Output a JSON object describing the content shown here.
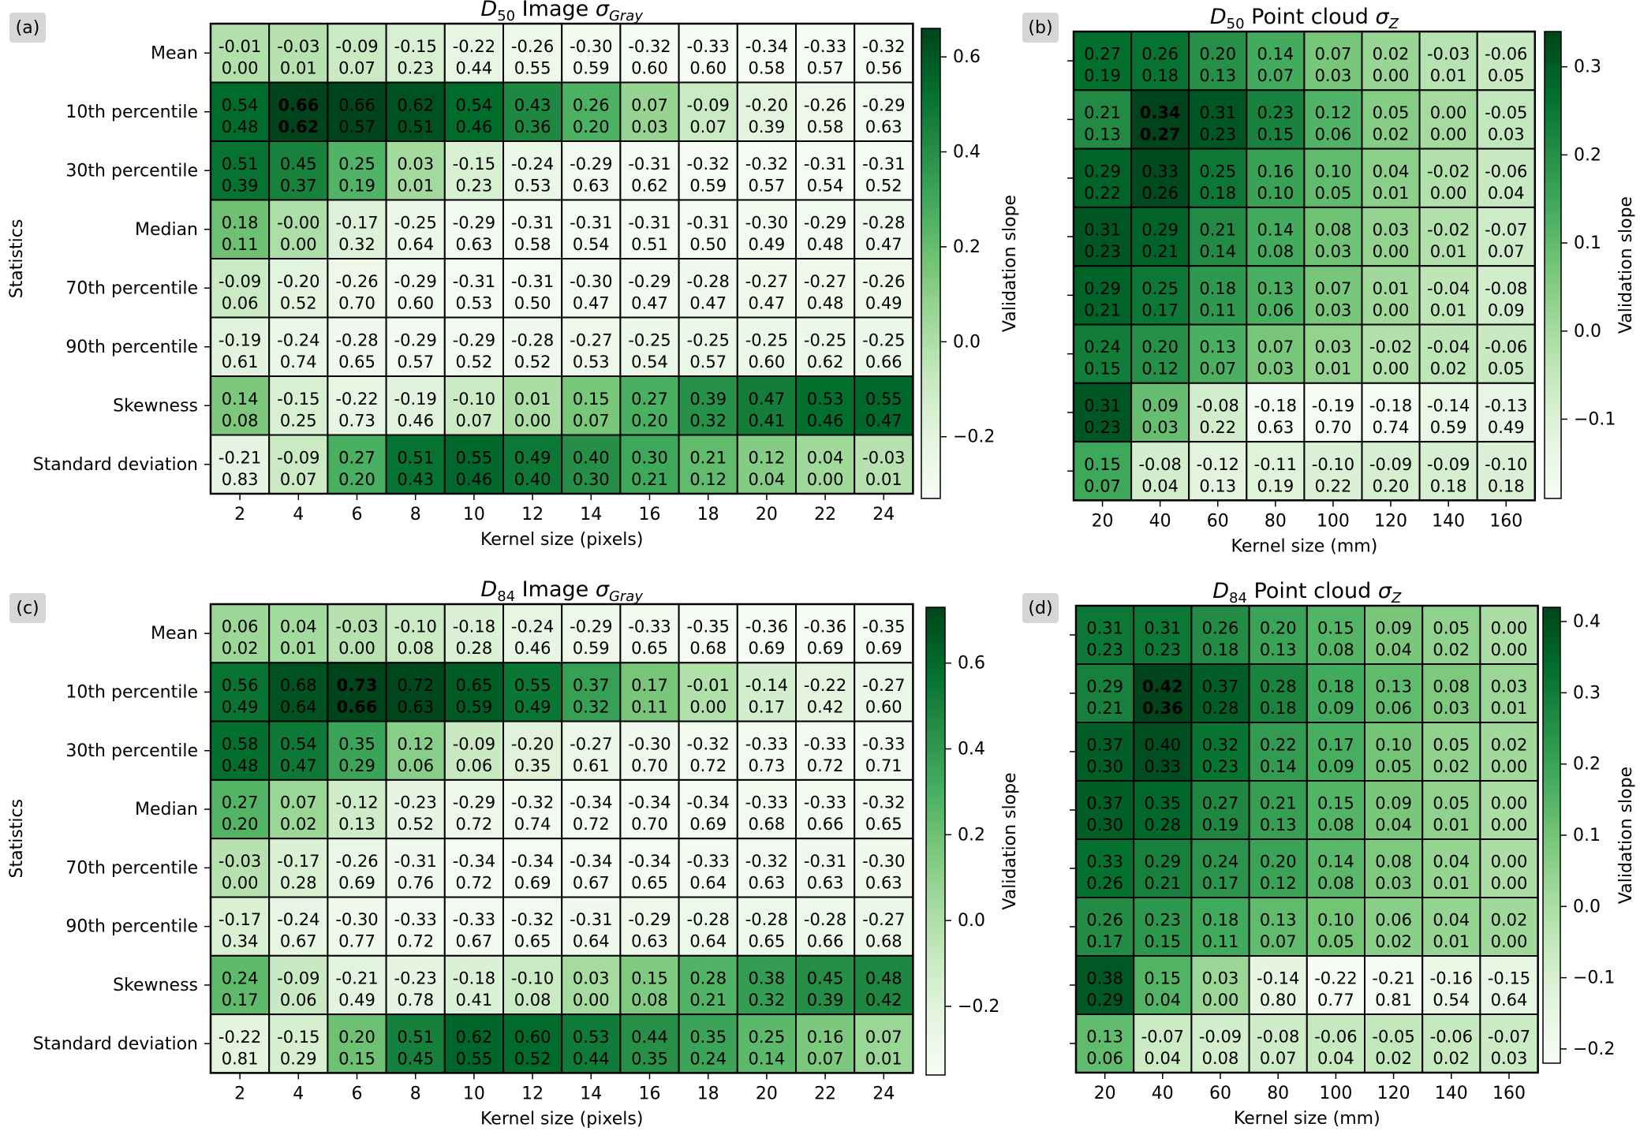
{
  "panels": [
    {
      "tag": "(a)",
      "title_var": "D",
      "title_sub": "50",
      "title_mid": " Image ",
      "title_sym": "σ",
      "title_sym_sub": "Gray",
      "xlabel": "Kernel size (pixels)",
      "ylabel": "Statistics",
      "colorbar_label": "Validation slope",
      "x": [
        2,
        4,
        6,
        8,
        10,
        12,
        14,
        16,
        18,
        20,
        22,
        24
      ],
      "rows": [
        "Mean",
        "10th percentile",
        "30th percentile",
        "Median",
        "70th percentile",
        "90th percentile",
        "Skewness",
        "Standard deviation"
      ],
      "slopes": [
        [
          -0.01,
          -0.03,
          -0.09,
          -0.15,
          -0.22,
          -0.26,
          -0.3,
          -0.32,
          -0.33,
          -0.34,
          -0.33,
          -0.32
        ],
        [
          0.54,
          0.66,
          0.66,
          0.62,
          0.54,
          0.43,
          0.26,
          0.07,
          -0.09,
          -0.2,
          -0.26,
          -0.29
        ],
        [
          0.51,
          0.45,
          0.25,
          0.03,
          -0.15,
          -0.24,
          -0.29,
          -0.31,
          -0.32,
          -0.32,
          -0.31,
          -0.31
        ],
        [
          0.18,
          -0.0,
          -0.17,
          -0.25,
          -0.29,
          -0.31,
          -0.31,
          -0.31,
          -0.31,
          -0.3,
          -0.29,
          -0.28
        ],
        [
          -0.09,
          -0.2,
          -0.26,
          -0.29,
          -0.31,
          -0.31,
          -0.3,
          -0.29,
          -0.28,
          -0.27,
          -0.27,
          -0.26
        ],
        [
          -0.19,
          -0.24,
          -0.28,
          -0.29,
          -0.29,
          -0.28,
          -0.27,
          -0.25,
          -0.25,
          -0.25,
          -0.25,
          -0.25
        ],
        [
          0.14,
          -0.15,
          -0.22,
          -0.19,
          -0.1,
          0.01,
          0.15,
          0.27,
          0.39,
          0.47,
          0.53,
          0.55
        ],
        [
          -0.21,
          -0.09,
          0.27,
          0.51,
          0.55,
          0.49,
          0.4,
          0.3,
          0.21,
          0.12,
          0.04,
          -0.03
        ]
      ],
      "second": [
        [
          0.0,
          0.01,
          0.07,
          0.23,
          0.44,
          0.55,
          0.59,
          0.6,
          0.6,
          0.58,
          0.57,
          0.56
        ],
        [
          0.48,
          0.62,
          0.57,
          0.51,
          0.46,
          0.36,
          0.2,
          0.03,
          0.07,
          0.39,
          0.58,
          0.63
        ],
        [
          0.39,
          0.37,
          0.19,
          0.01,
          0.23,
          0.53,
          0.63,
          0.62,
          0.59,
          0.57,
          0.54,
          0.52
        ],
        [
          0.11,
          0.0,
          0.32,
          0.64,
          0.63,
          0.58,
          0.54,
          0.51,
          0.5,
          0.49,
          0.48,
          0.47
        ],
        [
          0.06,
          0.52,
          0.7,
          0.6,
          0.53,
          0.5,
          0.47,
          0.47,
          0.47,
          0.47,
          0.48,
          0.49
        ],
        [
          0.61,
          0.74,
          0.65,
          0.57,
          0.52,
          0.52,
          0.53,
          0.54,
          0.57,
          0.6,
          0.62,
          0.66
        ],
        [
          0.08,
          0.25,
          0.73,
          0.46,
          0.07,
          0.0,
          0.07,
          0.2,
          0.32,
          0.41,
          0.46,
          0.47
        ],
        [
          0.83,
          0.07,
          0.2,
          0.43,
          0.46,
          0.4,
          0.3,
          0.21,
          0.12,
          0.04,
          0.0,
          0.01
        ]
      ],
      "bold_cell": [
        1,
        1
      ],
      "vmin": -0.33,
      "vmax": 0.66,
      "cb_ticks": [
        -0.2,
        0.0,
        0.2,
        0.4,
        0.6
      ],
      "cb_tick_labels": [
        "−0.2",
        "0.0",
        "0.2",
        "0.4",
        "0.6"
      ]
    },
    {
      "tag": "(b)",
      "title_var": "D",
      "title_sub": "50",
      "title_mid": " Point cloud ",
      "title_sym": "σ",
      "title_sym_sub": "Z",
      "xlabel": "Kernel size (mm)",
      "ylabel": "",
      "colorbar_label": "Validation slope",
      "x": [
        20,
        40,
        60,
        80,
        100,
        120,
        140,
        160
      ],
      "rows": [
        "",
        "",
        "",
        "",
        "",
        "",
        "",
        ""
      ],
      "slopes": [
        [
          0.27,
          0.26,
          0.2,
          0.14,
          0.07,
          0.02,
          -0.03,
          -0.06
        ],
        [
          0.21,
          0.34,
          0.31,
          0.23,
          0.12,
          0.05,
          0.0,
          -0.05
        ],
        [
          0.29,
          0.33,
          0.25,
          0.16,
          0.1,
          0.04,
          -0.02,
          -0.06
        ],
        [
          0.31,
          0.29,
          0.21,
          0.14,
          0.08,
          0.03,
          -0.02,
          -0.07
        ],
        [
          0.29,
          0.25,
          0.18,
          0.13,
          0.07,
          0.01,
          -0.04,
          -0.08
        ],
        [
          0.24,
          0.2,
          0.13,
          0.07,
          0.03,
          -0.02,
          -0.04,
          -0.06
        ],
        [
          0.31,
          0.09,
          -0.08,
          -0.18,
          -0.19,
          -0.18,
          -0.14,
          -0.13
        ],
        [
          0.15,
          -0.08,
          -0.12,
          -0.11,
          -0.1,
          -0.09,
          -0.09,
          -0.1
        ]
      ],
      "second": [
        [
          0.19,
          0.18,
          0.13,
          0.07,
          0.03,
          0.0,
          0.01,
          0.05
        ],
        [
          0.13,
          0.27,
          0.23,
          0.15,
          0.06,
          0.02,
          0.0,
          0.03
        ],
        [
          0.22,
          0.26,
          0.18,
          0.1,
          0.05,
          0.01,
          0.0,
          0.04
        ],
        [
          0.23,
          0.21,
          0.14,
          0.08,
          0.03,
          0.0,
          0.01,
          0.07
        ],
        [
          0.21,
          0.17,
          0.11,
          0.06,
          0.03,
          0.0,
          0.01,
          0.09
        ],
        [
          0.15,
          0.12,
          0.07,
          0.03,
          0.01,
          0.0,
          0.02,
          0.05
        ],
        [
          0.23,
          0.03,
          0.22,
          0.63,
          0.7,
          0.74,
          0.59,
          0.49
        ],
        [
          0.07,
          0.04,
          0.13,
          0.19,
          0.22,
          0.2,
          0.18,
          0.18
        ]
      ],
      "bold_cell": [
        1,
        1
      ],
      "vmin": -0.19,
      "vmax": 0.34,
      "cb_ticks": [
        -0.1,
        0.0,
        0.1,
        0.2,
        0.3
      ],
      "cb_tick_labels": [
        "−0.1",
        "0.0",
        "0.1",
        "0.2",
        "0.3"
      ]
    },
    {
      "tag": "(c)",
      "title_var": "D",
      "title_sub": "84",
      "title_mid": " Image ",
      "title_sym": "σ",
      "title_sym_sub": "Gray",
      "xlabel": "Kernel size (pixels)",
      "ylabel": "Statistics",
      "colorbar_label": "Validation slope",
      "x": [
        2,
        4,
        6,
        8,
        10,
        12,
        14,
        16,
        18,
        20,
        22,
        24
      ],
      "rows": [
        "Mean",
        "10th percentile",
        "30th percentile",
        "Median",
        "70th percentile",
        "90th percentile",
        "Skewness",
        "Standard deviation"
      ],
      "slopes": [
        [
          0.06,
          0.04,
          -0.03,
          -0.1,
          -0.18,
          -0.24,
          -0.29,
          -0.33,
          -0.35,
          -0.36,
          -0.36,
          -0.35
        ],
        [
          0.56,
          0.68,
          0.73,
          0.72,
          0.65,
          0.55,
          0.37,
          0.17,
          -0.01,
          -0.14,
          -0.22,
          -0.27
        ],
        [
          0.58,
          0.54,
          0.35,
          0.12,
          -0.09,
          -0.2,
          -0.27,
          -0.3,
          -0.32,
          -0.33,
          -0.33,
          -0.33
        ],
        [
          0.27,
          0.07,
          -0.12,
          -0.23,
          -0.29,
          -0.32,
          -0.34,
          -0.34,
          -0.34,
          -0.33,
          -0.33,
          -0.32
        ],
        [
          -0.03,
          -0.17,
          -0.26,
          -0.31,
          -0.34,
          -0.34,
          -0.34,
          -0.34,
          -0.33,
          -0.32,
          -0.31,
          -0.3
        ],
        [
          -0.17,
          -0.24,
          -0.3,
          -0.33,
          -0.33,
          -0.32,
          -0.31,
          -0.29,
          -0.28,
          -0.28,
          -0.28,
          -0.27
        ],
        [
          0.24,
          -0.09,
          -0.21,
          -0.23,
          -0.18,
          -0.1,
          0.03,
          0.15,
          0.28,
          0.38,
          0.45,
          0.48
        ],
        [
          -0.22,
          -0.15,
          0.2,
          0.51,
          0.62,
          0.6,
          0.53,
          0.44,
          0.35,
          0.25,
          0.16,
          0.07
        ]
      ],
      "second": [
        [
          0.02,
          0.01,
          0.0,
          0.08,
          0.28,
          0.46,
          0.59,
          0.65,
          0.68,
          0.69,
          0.69,
          0.69
        ],
        [
          0.49,
          0.64,
          0.66,
          0.63,
          0.59,
          0.49,
          0.32,
          0.11,
          0.0,
          0.17,
          0.42,
          0.6
        ],
        [
          0.48,
          0.47,
          0.29,
          0.06,
          0.06,
          0.35,
          0.61,
          0.7,
          0.72,
          0.73,
          0.72,
          0.71
        ],
        [
          0.2,
          0.02,
          0.13,
          0.52,
          0.72,
          0.74,
          0.72,
          0.7,
          0.69,
          0.68,
          0.66,
          0.65
        ],
        [
          0.0,
          0.28,
          0.69,
          0.76,
          0.72,
          0.69,
          0.67,
          0.65,
          0.64,
          0.63,
          0.63,
          0.63
        ],
        [
          0.34,
          0.67,
          0.77,
          0.72,
          0.67,
          0.65,
          0.64,
          0.63,
          0.64,
          0.65,
          0.66,
          0.68
        ],
        [
          0.17,
          0.06,
          0.49,
          0.78,
          0.41,
          0.08,
          0.0,
          0.08,
          0.21,
          0.32,
          0.39,
          0.42
        ],
        [
          0.81,
          0.29,
          0.15,
          0.45,
          0.55,
          0.52,
          0.44,
          0.35,
          0.24,
          0.14,
          0.07,
          0.01
        ]
      ],
      "bold_cell": [
        1,
        2
      ],
      "vmin": -0.36,
      "vmax": 0.73,
      "cb_ticks": [
        -0.2,
        0.0,
        0.2,
        0.4,
        0.6
      ],
      "cb_tick_labels": [
        "−0.2",
        "0.0",
        "0.2",
        "0.4",
        "0.6"
      ]
    },
    {
      "tag": "(d)",
      "title_var": "D",
      "title_sub": "84",
      "title_mid": " Point cloud ",
      "title_sym": "σ",
      "title_sym_sub": "Z",
      "xlabel": "Kernel size (mm)",
      "ylabel": "",
      "colorbar_label": "Validation slope",
      "x": [
        20,
        40,
        60,
        80,
        100,
        120,
        140,
        160
      ],
      "rows": [
        "",
        "",
        "",
        "",
        "",
        "",
        "",
        ""
      ],
      "slopes": [
        [
          0.31,
          0.31,
          0.26,
          0.2,
          0.15,
          0.09,
          0.05,
          0.0
        ],
        [
          0.29,
          0.42,
          0.37,
          0.28,
          0.18,
          0.13,
          0.08,
          0.03
        ],
        [
          0.37,
          0.4,
          0.32,
          0.22,
          0.17,
          0.1,
          0.05,
          0.02
        ],
        [
          0.37,
          0.35,
          0.27,
          0.21,
          0.15,
          0.09,
          0.05,
          0.0
        ],
        [
          0.33,
          0.29,
          0.24,
          0.2,
          0.14,
          0.08,
          0.04,
          0.0
        ],
        [
          0.26,
          0.23,
          0.18,
          0.13,
          0.1,
          0.06,
          0.04,
          0.02
        ],
        [
          0.38,
          0.15,
          0.03,
          -0.14,
          -0.22,
          -0.21,
          -0.16,
          -0.15
        ],
        [
          0.13,
          -0.07,
          -0.09,
          -0.08,
          -0.06,
          -0.05,
          -0.06,
          -0.07
        ]
      ],
      "second": [
        [
          0.23,
          0.23,
          0.18,
          0.13,
          0.08,
          0.04,
          0.02,
          0.0
        ],
        [
          0.21,
          0.36,
          0.28,
          0.18,
          0.09,
          0.06,
          0.03,
          0.01
        ],
        [
          0.3,
          0.33,
          0.23,
          0.14,
          0.09,
          0.05,
          0.02,
          0.0
        ],
        [
          0.3,
          0.28,
          0.19,
          0.13,
          0.08,
          0.04,
          0.01,
          0.0
        ],
        [
          0.26,
          0.21,
          0.17,
          0.12,
          0.08,
          0.03,
          0.01,
          0.0
        ],
        [
          0.17,
          0.15,
          0.11,
          0.07,
          0.05,
          0.02,
          0.01,
          0.0
        ],
        [
          0.29,
          0.04,
          0.0,
          0.8,
          0.77,
          0.81,
          0.54,
          0.64
        ],
        [
          0.06,
          0.04,
          0.08,
          0.07,
          0.04,
          0.02,
          0.02,
          0.03
        ]
      ],
      "bold_cell": [
        1,
        1
      ],
      "vmin": -0.22,
      "vmax": 0.42,
      "cb_ticks": [
        -0.2,
        -0.1,
        0.0,
        0.1,
        0.2,
        0.3,
        0.4
      ],
      "cb_tick_labels": [
        "−0.2",
        "−0.1",
        "0.0",
        "0.1",
        "0.2",
        "0.3",
        "0.4"
      ]
    }
  ],
  "chart_data": [
    {
      "type": "heatmap",
      "panel": "(a)",
      "x": [
        2,
        4,
        6,
        8,
        10,
        12,
        14,
        16,
        18,
        20,
        22,
        24
      ],
      "xlabel": "Kernel size (pixels)",
      "ylabel": "Statistics",
      "colorbar": "Validation slope"
    },
    {
      "type": "heatmap",
      "panel": "(b)",
      "x": [
        20,
        40,
        60,
        80,
        100,
        120,
        140,
        160
      ],
      "xlabel": "Kernel size (mm)",
      "colorbar": "Validation slope"
    },
    {
      "type": "heatmap",
      "panel": "(c)",
      "x": [
        2,
        4,
        6,
        8,
        10,
        12,
        14,
        16,
        18,
        20,
        22,
        24
      ],
      "xlabel": "Kernel size (pixels)",
      "ylabel": "Statistics",
      "colorbar": "Validation slope"
    },
    {
      "type": "heatmap",
      "panel": "(d)",
      "x": [
        20,
        40,
        60,
        80,
        100,
        120,
        140,
        160
      ],
      "xlabel": "Kernel size (mm)",
      "colorbar": "Validation slope"
    }
  ],
  "colors": {
    "low": "#f7fcf5",
    "mid": "#74c476",
    "high": "#00441b",
    "grid": "#000000"
  }
}
